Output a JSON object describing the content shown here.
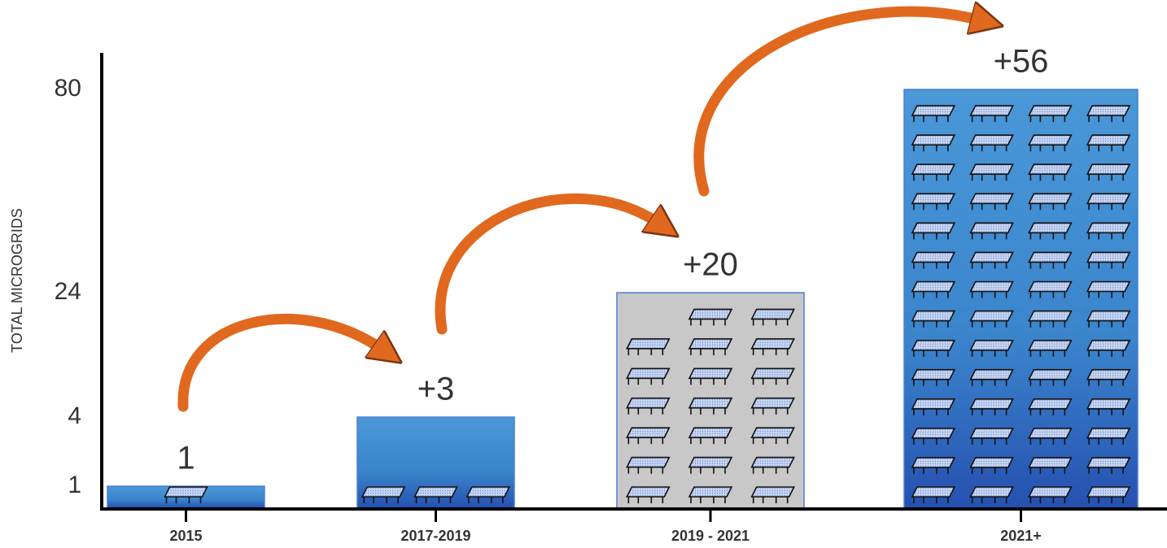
{
  "chart_data": {
    "type": "bar",
    "y_label": "TOTAL MICROGRIDS",
    "categories": [
      "2015",
      "2017-2019",
      "2019 - 2021",
      "2021+"
    ],
    "values": [
      1,
      4,
      24,
      80
    ],
    "added": [
      1,
      3,
      20,
      56
    ],
    "added_labels": [
      "1",
      "+3",
      "+20",
      "+56"
    ],
    "colors": [
      "#3d86cf",
      "#3d86cf",
      "#c9c8c8",
      "#3d86cf"
    ],
    "ylim": [
      0,
      80
    ],
    "yticks": [
      1,
      4,
      24,
      80
    ]
  }
}
